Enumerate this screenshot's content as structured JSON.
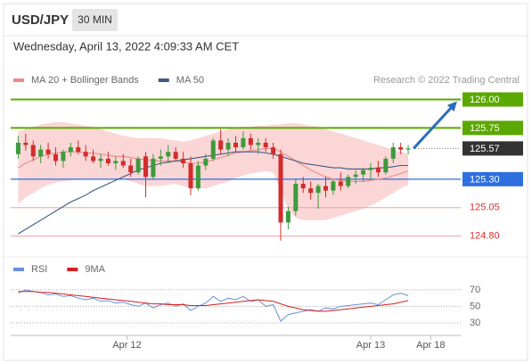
{
  "header": {
    "symbol": "USD/JPY",
    "interval": "30 MIN",
    "timestamp": "Wednesday, April 13, 2022 4:09:33 AM CET"
  },
  "chart_data": [
    {
      "type": "candlestick",
      "source": "Research © 2022 Trading Central",
      "xlim": [
        -1,
        59
      ],
      "ylim": [
        124.68,
        126.09
      ],
      "up_color": "#3c9b3c",
      "down_color": "#d42b2b",
      "open": [
        125.52,
        125.62,
        125.6,
        125.5,
        125.56,
        125.52,
        125.46,
        125.54,
        125.58,
        125.54,
        125.5,
        125.46,
        125.48,
        125.44,
        125.46,
        125.42,
        125.36,
        125.5,
        125.32,
        125.48,
        125.5,
        125.54,
        125.48,
        125.44,
        125.22,
        125.42,
        125.48,
        125.64,
        125.56,
        125.62,
        125.58,
        125.66,
        125.6,
        125.62,
        125.58,
        125.52,
        124.92,
        125.02,
        125.26,
        125.22,
        125.18,
        125.24,
        125.2,
        125.28,
        125.24,
        125.32,
        125.34,
        125.38,
        125.4,
        125.36,
        125.48,
        125.58,
        125.56
      ],
      "high": [
        125.68,
        125.7,
        125.64,
        125.6,
        125.62,
        125.58,
        125.56,
        125.62,
        125.64,
        125.6,
        125.56,
        125.52,
        125.54,
        125.5,
        125.52,
        125.48,
        125.5,
        125.54,
        125.52,
        125.56,
        125.6,
        125.58,
        125.54,
        125.5,
        125.46,
        125.52,
        125.66,
        125.74,
        125.66,
        125.68,
        125.72,
        125.7,
        125.66,
        125.66,
        125.62,
        125.56,
        125.06,
        125.3,
        125.32,
        125.28,
        125.26,
        125.32,
        125.3,
        125.36,
        125.34,
        125.38,
        125.4,
        125.44,
        125.46,
        125.5,
        125.62,
        125.62,
        125.6
      ],
      "low": [
        125.48,
        125.55,
        125.46,
        125.44,
        125.48,
        125.42,
        125.4,
        125.5,
        125.52,
        125.46,
        125.44,
        125.4,
        125.42,
        125.38,
        125.4,
        125.32,
        125.34,
        125.14,
        125.3,
        125.42,
        125.44,
        125.46,
        125.4,
        125.16,
        125.2,
        125.38,
        125.46,
        125.52,
        125.5,
        125.54,
        125.56,
        125.56,
        125.52,
        125.54,
        125.48,
        124.76,
        124.86,
        124.98,
        125.18,
        125.12,
        125.04,
        125.14,
        125.16,
        125.2,
        125.22,
        125.26,
        125.28,
        125.3,
        125.32,
        125.34,
        125.44,
        125.52,
        125.52
      ],
      "close": [
        125.62,
        125.6,
        125.5,
        125.56,
        125.52,
        125.46,
        125.54,
        125.58,
        125.54,
        125.5,
        125.46,
        125.48,
        125.44,
        125.46,
        125.42,
        125.36,
        125.48,
        125.32,
        125.48,
        125.5,
        125.54,
        125.48,
        125.44,
        125.22,
        125.42,
        125.48,
        125.64,
        125.56,
        125.62,
        125.58,
        125.66,
        125.6,
        125.62,
        125.58,
        125.52,
        124.92,
        125.02,
        125.26,
        125.22,
        125.18,
        125.24,
        125.2,
        125.28,
        125.24,
        125.32,
        125.34,
        125.38,
        125.4,
        125.36,
        125.48,
        125.58,
        125.56,
        125.57
      ],
      "series": [
        {
          "name": "MA 20 + Bollinger Bands",
          "color": "#f08a8a",
          "band_color": "#fbd6d6",
          "values": [
            125.4,
            125.44,
            125.47,
            125.5,
            125.52,
            125.53,
            125.54,
            125.54,
            125.54,
            125.53,
            125.53,
            125.52,
            125.51,
            125.5,
            125.5,
            125.49,
            125.48,
            125.47,
            125.46,
            125.46,
            125.46,
            125.46,
            125.45,
            125.44,
            125.44,
            125.45,
            125.47,
            125.49,
            125.51,
            125.53,
            125.54,
            125.55,
            125.56,
            125.57,
            125.57,
            125.54,
            125.5,
            125.46,
            125.42,
            125.38,
            125.35,
            125.32,
            125.3,
            125.29,
            125.28,
            125.28,
            125.28,
            125.29,
            125.3,
            125.31,
            125.33,
            125.35,
            125.37
          ],
          "upper": [
            125.72,
            125.74,
            125.76,
            125.78,
            125.79,
            125.8,
            125.8,
            125.79,
            125.78,
            125.77,
            125.76,
            125.74,
            125.72,
            125.7,
            125.68,
            125.67,
            125.66,
            125.66,
            125.66,
            125.66,
            125.65,
            125.64,
            125.63,
            125.64,
            125.66,
            125.68,
            125.7,
            125.72,
            125.74,
            125.75,
            125.76,
            125.76,
            125.77,
            125.77,
            125.78,
            125.78,
            125.79,
            125.79,
            125.78,
            125.77,
            125.76,
            125.74,
            125.72,
            125.7,
            125.68,
            125.66,
            125.64,
            125.62,
            125.6,
            125.58,
            125.56,
            125.54,
            125.52
          ],
          "lower": [
            125.08,
            125.14,
            125.18,
            125.22,
            125.25,
            125.27,
            125.28,
            125.29,
            125.3,
            125.3,
            125.3,
            125.3,
            125.3,
            125.3,
            125.3,
            125.28,
            125.26,
            125.24,
            125.24,
            125.24,
            125.25,
            125.26,
            125.24,
            125.22,
            125.22,
            125.22,
            125.24,
            125.26,
            125.28,
            125.31,
            125.33,
            125.35,
            125.36,
            125.37,
            125.36,
            125.2,
            125.04,
            124.96,
            124.94,
            124.94,
            124.94,
            124.94,
            124.96,
            124.98,
            125.0,
            125.02,
            125.04,
            125.07,
            125.1,
            125.14,
            125.18,
            125.22,
            125.25
          ]
        },
        {
          "name": "MA 50",
          "color": "#3c5a86",
          "values": [
            124.82,
            124.86,
            124.9,
            124.94,
            124.98,
            125.02,
            125.06,
            125.1,
            125.13,
            125.16,
            125.2,
            125.23,
            125.26,
            125.29,
            125.32,
            125.35,
            125.38,
            125.4,
            125.42,
            125.44,
            125.45,
            125.46,
            125.47,
            125.48,
            125.49,
            125.5,
            125.51,
            125.52,
            125.53,
            125.54,
            125.54,
            125.54,
            125.54,
            125.53,
            125.52,
            125.5,
            125.48,
            125.46,
            125.44,
            125.43,
            125.42,
            125.41,
            125.4,
            125.4,
            125.39,
            125.39,
            125.39,
            125.39,
            125.4,
            125.4,
            125.41,
            125.42,
            125.42
          ]
        }
      ],
      "levels": [
        {
          "value": 126,
          "label": "126.00",
          "style": "box",
          "color": "#5aa800"
        },
        {
          "value": 125.75,
          "label": "125.75",
          "style": "box",
          "color": "#5aa800"
        },
        {
          "value": 125.57,
          "label": "125.57",
          "style": "last",
          "color": "#333333"
        },
        {
          "value": 125.3,
          "label": "125.30",
          "style": "box",
          "color": "#2e6fe0"
        },
        {
          "value": 125.05,
          "label": "125.05",
          "style": "text",
          "color": "#e03030"
        },
        {
          "value": 124.8,
          "label": "124.80",
          "style": "text",
          "color": "#e03030"
        }
      ],
      "arrow_color": "#2a6cc0"
    },
    {
      "type": "line",
      "xlim": [
        -1,
        59
      ],
      "ylim": [
        19,
        84
      ],
      "yticks": [
        70,
        50,
        30
      ],
      "xticks": [
        {
          "value": 14.5,
          "label": "Apr 12"
        },
        {
          "value": 47,
          "label": "Apr 13"
        },
        {
          "value": 55,
          "label": "Apr 18"
        }
      ],
      "series": [
        {
          "name": "RSI",
          "color": "#6a8fe0",
          "values": [
            66,
            70,
            68,
            67,
            64,
            65,
            62,
            63,
            60,
            58,
            60,
            56,
            57,
            54,
            55,
            52,
            50,
            54,
            48,
            52,
            54,
            50,
            53,
            45,
            50,
            54,
            62,
            56,
            60,
            58,
            62,
            56,
            58,
            50,
            52,
            32,
            40,
            42,
            44,
            46,
            44,
            48,
            47,
            50,
            51,
            52,
            53,
            54,
            52,
            58,
            64,
            66,
            63
          ]
        },
        {
          "name": "9MA",
          "color": "#d62020",
          "values": [
            68,
            68,
            68,
            67,
            67,
            66,
            65,
            64,
            63,
            62,
            61,
            60,
            59,
            58,
            57,
            56,
            55,
            54,
            53,
            53,
            52,
            52,
            52,
            51,
            51,
            51,
            52,
            53,
            54,
            55,
            56,
            57,
            58,
            57,
            56,
            53,
            50,
            48,
            46,
            45,
            44,
            44,
            45,
            46,
            47,
            48,
            49,
            50,
            51,
            52,
            53,
            55,
            57
          ]
        }
      ]
    }
  ]
}
